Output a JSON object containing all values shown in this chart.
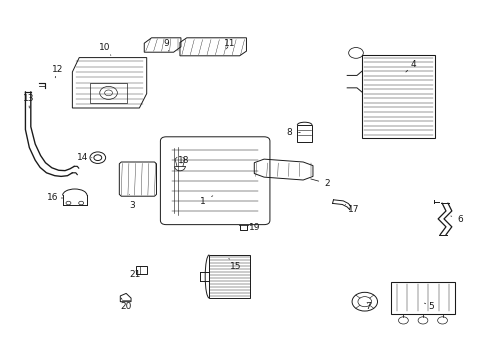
{
  "bg_color": "#ffffff",
  "line_color": "#1a1a1a",
  "fig_width": 4.89,
  "fig_height": 3.6,
  "dpi": 100,
  "label_positions": {
    "1": [
      0.415,
      0.44,
      0.44,
      0.46
    ],
    "2": [
      0.67,
      0.49,
      0.63,
      0.505
    ],
    "3": [
      0.27,
      0.43,
      0.265,
      0.46
    ],
    "4": [
      0.845,
      0.82,
      0.83,
      0.8
    ],
    "5": [
      0.882,
      0.148,
      0.868,
      0.158
    ],
    "6": [
      0.942,
      0.39,
      0.922,
      0.4
    ],
    "7": [
      0.753,
      0.148,
      0.75,
      0.165
    ],
    "8": [
      0.592,
      0.632,
      0.614,
      0.632
    ],
    "9": [
      0.34,
      0.88,
      0.345,
      0.858
    ],
    "10": [
      0.215,
      0.868,
      0.23,
      0.84
    ],
    "11": [
      0.47,
      0.878,
      0.46,
      0.858
    ],
    "12": [
      0.118,
      0.808,
      0.113,
      0.784
    ],
    "13": [
      0.058,
      0.726,
      0.06,
      0.7
    ],
    "14": [
      0.17,
      0.562,
      0.188,
      0.562
    ],
    "15": [
      0.482,
      0.26,
      0.468,
      0.282
    ],
    "16": [
      0.108,
      0.45,
      0.128,
      0.45
    ],
    "17": [
      0.724,
      0.418,
      0.706,
      0.432
    ],
    "18": [
      0.376,
      0.554,
      0.366,
      0.542
    ],
    "19": [
      0.52,
      0.368,
      0.506,
      0.38
    ],
    "20": [
      0.258,
      0.148,
      0.248,
      0.172
    ],
    "21": [
      0.276,
      0.238,
      0.286,
      0.25
    ]
  }
}
